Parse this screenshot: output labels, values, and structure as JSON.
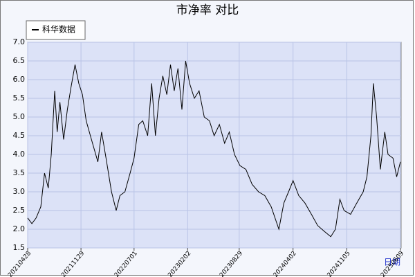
{
  "chart_data": {
    "type": "line",
    "title": "市净率  对比",
    "x_label": "日期",
    "legend_position": "upper left",
    "grid": true,
    "x": [
      "20210428",
      "20210515",
      "20210601",
      "20210620",
      "20210705",
      "20210720",
      "20210801",
      "20210815",
      "20210825",
      "20210905",
      "20210920",
      "20211005",
      "20211020",
      "20211105",
      "20211120",
      "20211205",
      "20211220",
      "20220110",
      "20220205",
      "20220220",
      "20220310",
      "20220401",
      "20220420",
      "20220505",
      "20220525",
      "20220615",
      "20220701",
      "20220720",
      "20220805",
      "20220825",
      "20220910",
      "20220925",
      "20221010",
      "20221025",
      "20221110",
      "20221125",
      "20221210",
      "20221225",
      "20230110",
      "20230125",
      "20230210",
      "20230301",
      "20230320",
      "20230410",
      "20230501",
      "20230520",
      "20230610",
      "20230701",
      "20230720",
      "20230810",
      "20230901",
      "20230925",
      "20231020",
      "20231115",
      "20231210",
      "20240105",
      "20240205",
      "20240225",
      "20240315",
      "20240402",
      "20240425",
      "20240520",
      "20240615",
      "20240710",
      "20240805",
      "20240901",
      "20240920",
      "20241008",
      "20241025",
      "20241120",
      "20241215",
      "20250110",
      "20250125",
      "20250210",
      "20250220",
      "20250305",
      "20250320",
      "20250407",
      "20250420",
      "20250510",
      "20250525",
      "20250609"
    ],
    "series": [
      {
        "name": "科华数据",
        "color": "#000000",
        "values": [
          2.3,
          2.15,
          2.3,
          2.6,
          3.5,
          3.1,
          4.0,
          5.7,
          4.6,
          5.4,
          4.4,
          5.2,
          5.8,
          6.4,
          5.9,
          5.6,
          4.9,
          4.4,
          3.8,
          4.6,
          3.9,
          3.0,
          2.5,
          2.9,
          3.0,
          3.5,
          3.9,
          4.8,
          4.9,
          4.5,
          5.9,
          4.5,
          5.5,
          6.1,
          5.6,
          6.4,
          5.7,
          6.3,
          5.2,
          6.5,
          5.9,
          5.5,
          5.7,
          5.0,
          4.9,
          4.5,
          4.8,
          4.3,
          4.6,
          4.0,
          3.7,
          3.6,
          3.2,
          3.0,
          2.9,
          2.6,
          2.0,
          2.7,
          3.0,
          3.3,
          2.9,
          2.7,
          2.4,
          2.1,
          1.95,
          1.8,
          2.0,
          2.8,
          2.5,
          2.4,
          2.7,
          3.0,
          3.4,
          4.5,
          5.9,
          5.0,
          3.6,
          4.6,
          4.0,
          3.9,
          3.4,
          3.8
        ]
      }
    ],
    "xlim": [
      "20210428",
      "20250612"
    ],
    "xticks": [
      "20210428",
      "20211129",
      "20220701",
      "20230202",
      "20230829",
      "20240402",
      "20241105",
      "20250609"
    ],
    "ylim": [
      1.5,
      7.0
    ],
    "yticks": [
      1.5,
      {
        "value": 2,
        "label": "2.0"
      },
      2.5,
      {
        "value": 3,
        "label": "3.0"
      },
      3.5,
      {
        "value": 4,
        "label": "4.0"
      },
      4.5,
      {
        "value": 5,
        "label": "5.0"
      },
      5.5,
      {
        "value": 6,
        "label": "6.0"
      },
      6.5,
      {
        "value": 7,
        "label": "7.0"
      }
    ]
  }
}
